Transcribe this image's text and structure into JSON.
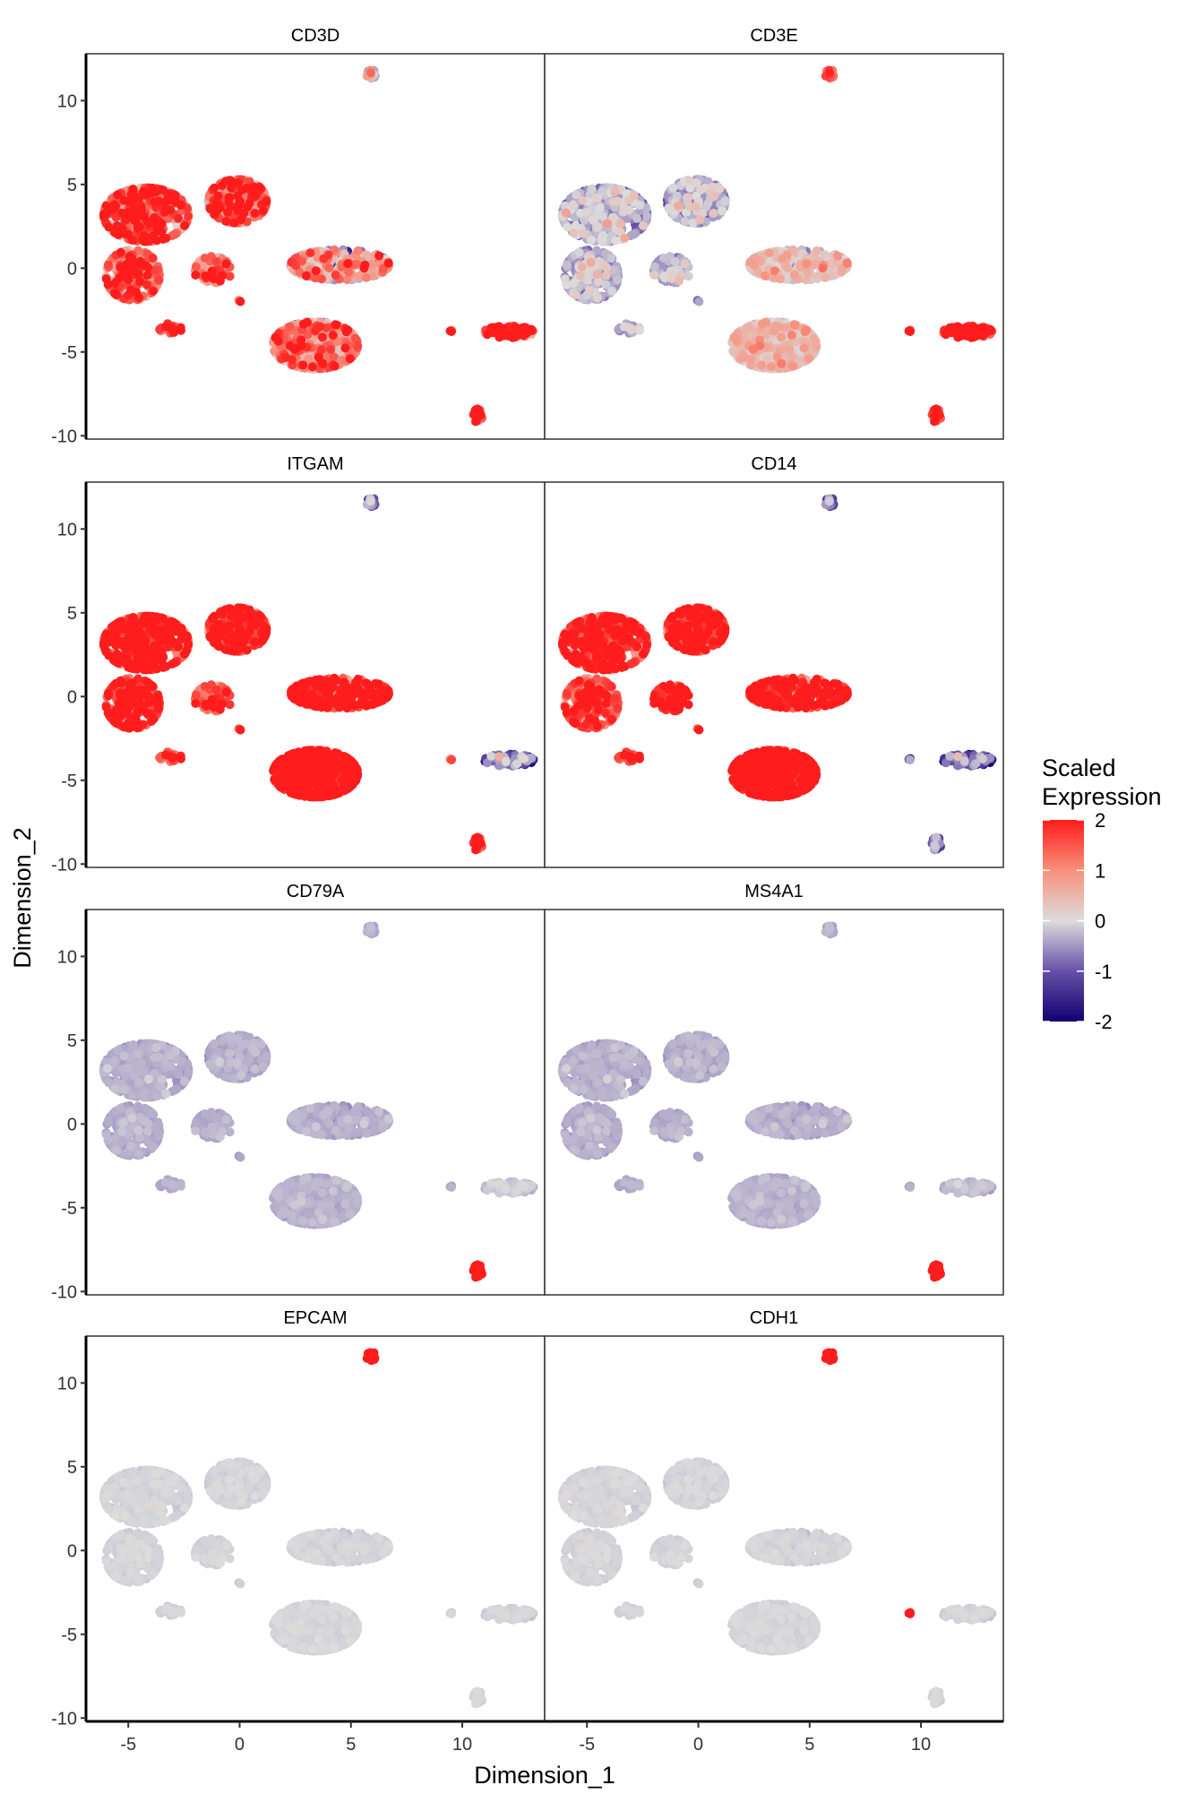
{
  "chart_data": {
    "type": "scatter",
    "xlabel": "Dimension_1",
    "ylabel": "Dimension_2",
    "xlim": [
      -6.9,
      13.7
    ],
    "ylim": [
      -10.2,
      12.8
    ],
    "xticks": [
      -5,
      0,
      5,
      10
    ],
    "yticks": [
      -10,
      -5,
      0,
      5,
      10
    ],
    "grid": false,
    "legend": {
      "title_line1": "Scaled",
      "title_line2": "Expression",
      "placement": "right",
      "ticks": [
        2,
        1,
        0,
        -1,
        -2
      ],
      "colors": {
        "-2": "#120070",
        "-1": "#6650a8",
        "0": "#dcdcdc",
        "1": "#f8907c",
        "2": "#ff1c1c"
      }
    },
    "clusters": [
      {
        "id": "c1",
        "center": [
          -4.2,
          3.2
        ],
        "spread": [
          1.9,
          1.6
        ],
        "n": 420
      },
      {
        "id": "c2",
        "center": [
          -4.8,
          -0.4
        ],
        "spread": [
          1.2,
          1.5
        ],
        "n": 220
      },
      {
        "id": "c3",
        "center": [
          -0.1,
          4.0
        ],
        "spread": [
          1.3,
          1.3
        ],
        "n": 230
      },
      {
        "id": "c4",
        "center": [
          -1.2,
          -0.2
        ],
        "spread": [
          0.8,
          0.9
        ],
        "n": 90
      },
      {
        "id": "c5",
        "center": [
          -3.1,
          -3.6
        ],
        "spread": [
          0.5,
          0.3
        ],
        "n": 25
      },
      {
        "id": "c6",
        "center": [
          0.0,
          -1.9
        ],
        "spread": [
          0.1,
          0.1
        ],
        "n": 3
      },
      {
        "id": "c7",
        "center": [
          4.5,
          0.2
        ],
        "spread": [
          2.2,
          0.9
        ],
        "n": 260
      },
      {
        "id": "c8",
        "center": [
          3.4,
          -4.6
        ],
        "spread": [
          1.9,
          1.4
        ],
        "n": 420
      },
      {
        "id": "c9",
        "center": [
          12.1,
          -3.8
        ],
        "spread": [
          1.1,
          0.35
        ],
        "n": 70
      },
      {
        "id": "c10",
        "center": [
          9.5,
          -3.8
        ],
        "spread": [
          0.1,
          0.1
        ],
        "n": 3
      },
      {
        "id": "c11",
        "center": [
          10.7,
          -8.8
        ],
        "spread": [
          0.2,
          0.4
        ],
        "n": 25
      },
      {
        "id": "c12",
        "center": [
          5.9,
          11.6
        ],
        "spread": [
          0.2,
          0.3
        ],
        "n": 15
      }
    ],
    "panels": [
      {
        "gene": "CD3D",
        "expression": [
          1.2,
          1.0,
          1.2,
          0.8,
          1.5,
          2,
          0.2,
          0.4,
          2,
          2,
          1.5,
          -0.3
        ],
        "noise": 0.9
      },
      {
        "gene": "CD3E",
        "expression": [
          -0.5,
          -0.5,
          -0.5,
          -0.5,
          -0.5,
          -0.5,
          0.1,
          0.1,
          2,
          2,
          1.5,
          1.2
        ],
        "noise": 0.4
      },
      {
        "gene": "ITGAM",
        "expression": [
          1.8,
          1.7,
          1.8,
          1.2,
          1.3,
          2,
          1.9,
          2,
          -1,
          1,
          1.5,
          -1
        ],
        "noise": 0.6
      },
      {
        "gene": "CD14",
        "expression": [
          1.6,
          1.3,
          1.8,
          1.8,
          1.5,
          2,
          1.8,
          2,
          -1.2,
          -1,
          -1.2,
          -1.2
        ],
        "noise": 0.6
      },
      {
        "gene": "CD79A",
        "expression": [
          -0.4,
          -0.4,
          -0.4,
          -0.4,
          -0.4,
          -0.4,
          -0.4,
          -0.4,
          -0.2,
          -0.4,
          2,
          -0.4
        ],
        "noise": 0.1
      },
      {
        "gene": "MS4A1",
        "expression": [
          -0.4,
          -0.4,
          -0.4,
          -0.4,
          -0.4,
          -0.4,
          -0.4,
          -0.4,
          -0.3,
          -0.4,
          2,
          -0.4
        ],
        "noise": 0.1
      },
      {
        "gene": "EPCAM",
        "expression": [
          -0.1,
          -0.1,
          -0.1,
          -0.1,
          -0.1,
          -0.1,
          -0.1,
          -0.1,
          -0.1,
          -0.1,
          -0.1,
          2
        ],
        "noise": 0.05
      },
      {
        "gene": "CDH1",
        "expression": [
          -0.1,
          -0.1,
          -0.1,
          -0.1,
          -0.1,
          -0.1,
          -0.1,
          -0.1,
          -0.1,
          2,
          -0.1,
          2
        ],
        "noise": 0.05
      }
    ]
  }
}
